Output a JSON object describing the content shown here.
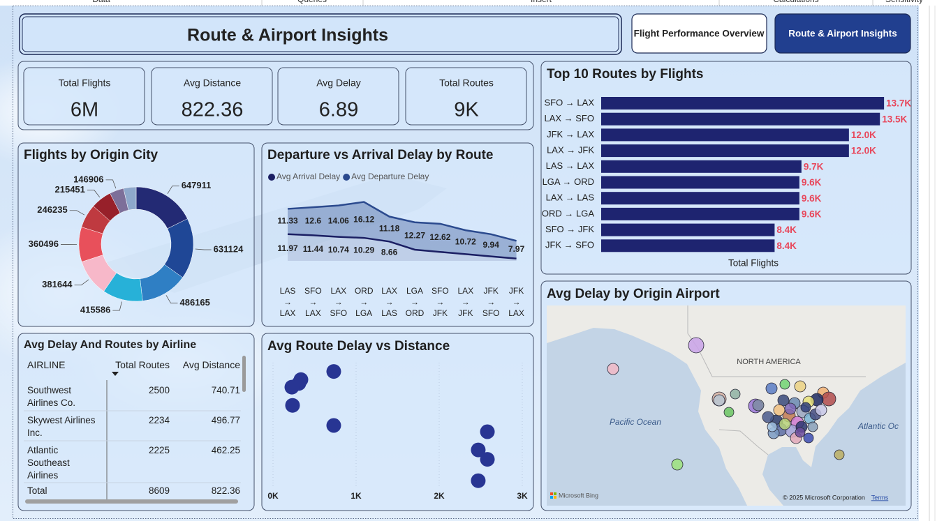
{
  "ribbon": [
    "Data",
    "Queries",
    "Insert",
    "Calculations",
    "Sensitivity"
  ],
  "header": {
    "title": "Route & Airport Insights"
  },
  "nav": [
    "Flight Performance Overview",
    "Route & Airport Insights"
  ],
  "kpis": [
    {
      "label": "Total Flights",
      "value": "6M"
    },
    {
      "label": "Avg Distance",
      "value": "822.36"
    },
    {
      "label": "Avg Delay",
      "value": "6.89"
    },
    {
      "label": "Total Routes",
      "value": "9K"
    }
  ],
  "chart_data": [
    {
      "type": "pie",
      "title": "Flights by Origin City",
      "values": [
        647911,
        631124,
        486165,
        415586,
        381644,
        360496,
        246235,
        215451,
        146906,
        130000
      ],
      "value_labels": [
        "647911",
        "631124",
        "486165",
        "415586",
        "381644",
        "360496",
        "246235",
        "215451",
        "146906",
        null
      ],
      "colors": [
        "#232a74",
        "#1f4796",
        "#2f7fc4",
        "#27b1d8",
        "#f7b8c9",
        "#e8505b",
        "#bf3a40",
        "#97202a",
        "#7d6f99",
        "#8ea8cb"
      ]
    },
    {
      "type": "area",
      "stacked": true,
      "title": "Departure vs Arrival Delay by Route",
      "categories": [
        "LAS → LAX",
        "SFO → LAX",
        "LAX → SFO",
        "ORD → LGA",
        "LAX → LAS",
        "LGA → ORD",
        "SFO → JFK",
        "LAX → JFK",
        "JFK → SFO",
        "JFK → LAX"
      ],
      "series": [
        {
          "name": "Avg Arrival Delay",
          "color": "#1b1f63",
          "values": [
            11.97,
            11.44,
            10.74,
            10.29,
            8.66,
            5,
            4,
            3,
            2,
            1
          ],
          "value_labels": [
            "11.97",
            "11.44",
            "10.74",
            "10.29",
            "8.66",
            null,
            null,
            null,
            null,
            null
          ]
        },
        {
          "name": "Avg Departure Delay",
          "color": "#2b4a8e",
          "values": [
            11.33,
            12.6,
            14.06,
            16.12,
            11.18,
            12.27,
            12.62,
            10.72,
            9.94,
            7.97
          ]
        }
      ],
      "ylim": [
        0,
        30
      ]
    },
    {
      "type": "hbar",
      "title": "Top 10 Routes by Flights",
      "x_label": "Total Flights",
      "categories": [
        "SFO → LAX",
        "LAX → SFO",
        "JFK → LAX",
        "LAX → JFK",
        "LAS → LAX",
        "LGA → ORD",
        "LAX → LAS",
        "ORD → LGA",
        "SFO → JFK",
        "JFK → SFO"
      ],
      "values": [
        13700,
        13500,
        12000,
        12000,
        9700,
        9600,
        9600,
        9600,
        8400,
        8400
      ],
      "value_labels": [
        "13.7K",
        "13.5K",
        "12.0K",
        "12.0K",
        "9.7K",
        "9.6K",
        "9.6K",
        "9.6K",
        "8.4K",
        "8.4K"
      ],
      "color": "#1e2470",
      "label_color": "#e8475b",
      "xlim": [
        0,
        14000
      ]
    },
    {
      "type": "scatter",
      "title": "Avg Route Delay vs Distance",
      "x": [
        336,
        311,
        227,
        235,
        731,
        731,
        2580,
        2470,
        2580,
        2470
      ],
      "values": [
        17.3,
        16.7,
        16.1,
        13.2,
        18.6,
        10.0,
        9.0,
        6.1,
        4.6,
        1.2
      ],
      "xlim": [
        0,
        3000
      ],
      "xticks": [
        {
          "value": 0,
          "label": "0K"
        },
        {
          "value": 1000,
          "label": "1K"
        },
        {
          "value": 2000,
          "label": "2K"
        },
        {
          "value": 3000,
          "label": "3K"
        }
      ],
      "ylim": [
        0,
        20
      ],
      "color": "#283593",
      "grid": true
    }
  ],
  "table": {
    "title": "Avg Delay And Routes by Airline",
    "columns": [
      "AIRLINE",
      "Total Routes",
      "Avg Distance"
    ],
    "rows": [
      [
        "Southwest Airlines Co.",
        "2500",
        "740.71"
      ],
      [
        "Skywest Airlines Inc.",
        "2234",
        "496.77"
      ],
      [
        "Atlantic Southeast Airlines",
        "2225",
        "462.25"
      ]
    ],
    "total": [
      "Total",
      "8609",
      "822.36"
    ]
  },
  "map": {
    "title": "Avg Delay by Origin Airport",
    "continent": "NORTH AMERICA",
    "oceans": [
      "Pacific Ocean",
      "Atlantic Oc"
    ],
    "attribution": "Microsoft Bing",
    "copyright": "© 2025 Microsoft Corporation",
    "terms": "Terms"
  }
}
